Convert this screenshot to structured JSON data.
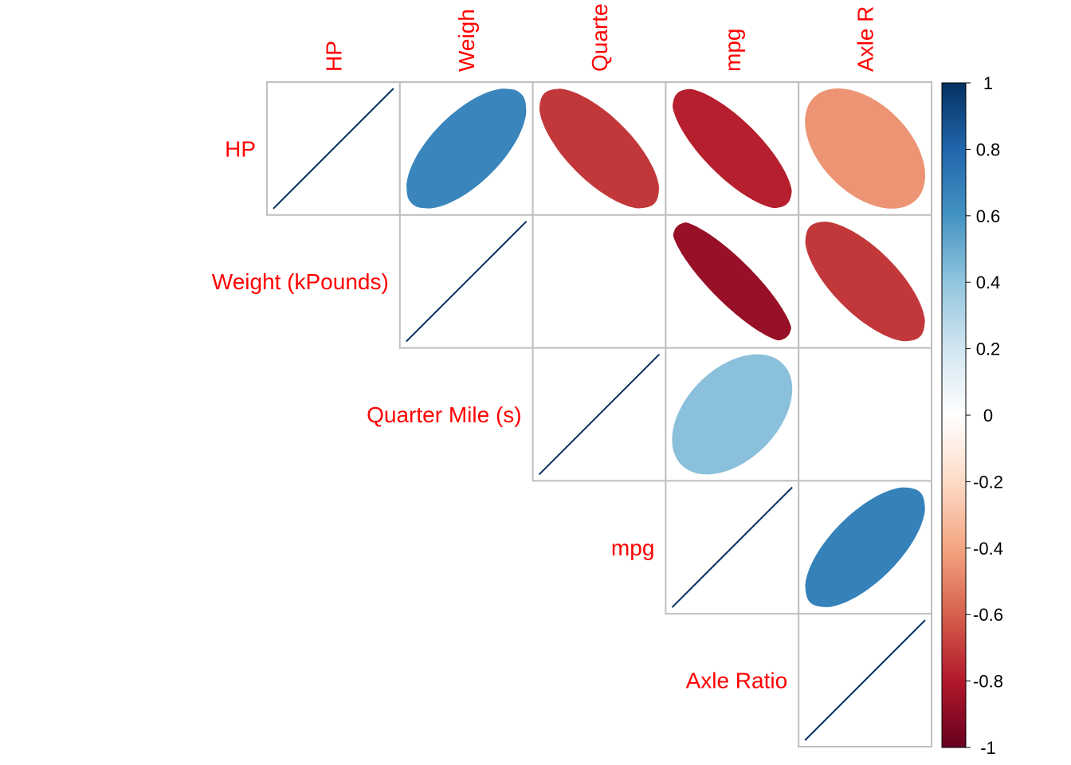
{
  "chart_data": {
    "type": "heatmap",
    "layout": "upper-triangular correlation plot with ellipses",
    "variables": [
      "HP",
      "Weight (kPounds)",
      "Quarter Mile (s)",
      "mpg",
      "Axle Ratio"
    ],
    "column_labels": [
      "HP",
      "Weigh",
      "Quarte",
      "mpg",
      "Axle R"
    ],
    "matrix": [
      [
        1.0,
        0.66,
        -0.71,
        -0.78,
        -0.45
      ],
      [
        0.66,
        1.0,
        0.0,
        -0.87,
        -0.71
      ],
      [
        -0.71,
        0.0,
        1.0,
        0.42,
        0.0
      ],
      [
        -0.78,
        -0.87,
        0.42,
        1.0,
        0.68
      ],
      [
        -0.45,
        -0.71,
        0.0,
        0.68,
        1.0
      ]
    ],
    "colorbar": {
      "range": [
        -1,
        1
      ],
      "ticks": [
        "1",
        "0.8",
        "0.6",
        "0.4",
        "0.2",
        "0",
        "-0.2",
        "-0.4",
        "-0.6",
        "-0.8",
        "-1"
      ],
      "colors": [
        "#67001F",
        "#B2182B",
        "#D6604D",
        "#F4A582",
        "#FDDBC7",
        "#FFFFFF",
        "#D1E5F0",
        "#92C5DE",
        "#4393C3",
        "#2166AC",
        "#053061"
      ]
    },
    "label_color": "#ff0000",
    "grid_color": "#bfbfbf"
  }
}
